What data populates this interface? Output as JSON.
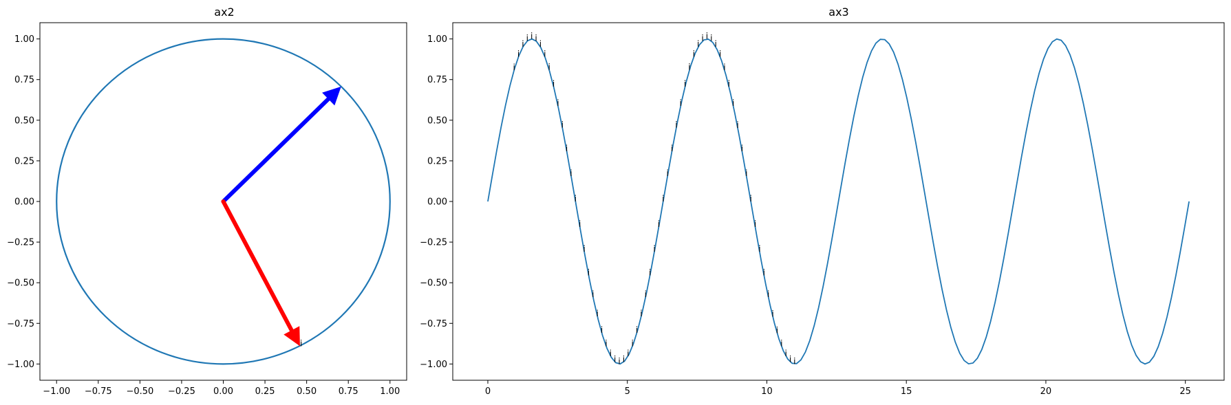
{
  "colors": {
    "line": "#1f77b4",
    "arrow1": "#0000ff",
    "arrow2": "#ff0000",
    "axes": "#000000"
  },
  "chart_data": [
    {
      "type": "line",
      "title": "ax2",
      "xlim": [
        -1.1,
        1.1
      ],
      "ylim": [
        -1.1,
        1.1
      ],
      "xticks": [
        -1.0,
        -0.75,
        -0.5,
        -0.25,
        0.0,
        0.25,
        0.5,
        0.75,
        1.0
      ],
      "yticks": [
        -1.0,
        -0.75,
        -0.5,
        -0.25,
        0.0,
        0.25,
        0.5,
        0.75,
        1.0
      ],
      "xtick_labels": [
        "−1.00",
        "−0.75",
        "−0.50",
        "−0.25",
        "0.00",
        "0.25",
        "0.50",
        "0.75",
        "1.00"
      ],
      "ytick_labels": [
        "−1.00",
        "−0.75",
        "−0.50",
        "−0.25",
        "0.00",
        "0.25",
        "0.50",
        "0.75",
        "1.00"
      ],
      "series": [
        {
          "kind": "unit-circle",
          "radius": 1.0,
          "center": [
            0,
            0
          ]
        }
      ],
      "arrows": [
        {
          "from": [
            0,
            0
          ],
          "to": [
            0.707,
            0.707
          ],
          "color": "blue"
        },
        {
          "from": [
            0,
            0
          ],
          "to": [
            0.46,
            -0.89
          ],
          "color": "red"
        }
      ],
      "annotations": [
        {
          "text": "i",
          "x": 0.46,
          "y": -0.89
        }
      ]
    },
    {
      "type": "line",
      "title": "ax3",
      "xlim": [
        -1.257,
        26.389
      ],
      "ylim": [
        -1.1,
        1.1
      ],
      "xticks": [
        0,
        5,
        10,
        15,
        20,
        25
      ],
      "yticks": [
        -1.0,
        -0.75,
        -0.5,
        -0.25,
        0.0,
        0.25,
        0.5,
        0.75,
        1.0
      ],
      "xtick_labels": [
        "0",
        "5",
        "10",
        "15",
        "20",
        "25"
      ],
      "ytick_labels": [
        "−1.00",
        "−0.75",
        "−0.50",
        "−0.25",
        "0.00",
        "0.25",
        "0.50",
        "0.75",
        "1.00"
      ],
      "series": [
        {
          "function": "sin(x)",
          "x_range": [
            0,
            25.133
          ],
          "points": 160
        }
      ],
      "annotations": {
        "text": "i",
        "x_start": 0.942,
        "x_end": 11.153,
        "step": 0.1571,
        "y_function": "sin(x)"
      }
    }
  ]
}
